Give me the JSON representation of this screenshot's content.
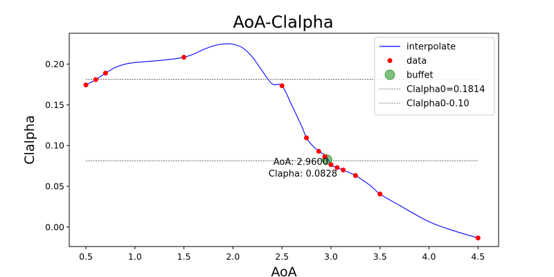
{
  "chart_data": {
    "type": "line",
    "title": "AoA-Clalpha",
    "xlabel": "AoA",
    "ylabel": "Clalpha",
    "xlim": [
      0.33,
      4.71
    ],
    "ylim": [
      -0.024,
      0.238
    ],
    "xticks": [
      0.5,
      1.0,
      1.5,
      2.0,
      2.5,
      3.0,
      3.5,
      4.0,
      4.5
    ],
    "xtick_labels": [
      "0.5",
      "1.0",
      "1.5",
      "2.0",
      "2.5",
      "3.0",
      "3.5",
      "4.0",
      "4.5"
    ],
    "yticks": [
      0.0,
      0.05,
      0.1,
      0.15,
      0.2
    ],
    "ytick_labels": [
      "0.00",
      "0.05",
      "0.10",
      "0.15",
      "0.20"
    ],
    "grid": false,
    "legend_position": "top-right",
    "series": [
      {
        "name": "interpolate",
        "kind": "line",
        "color": "#0000ff",
        "x": [
          0.5,
          0.6,
          0.7,
          0.8,
          0.9,
          1.0,
          1.2,
          1.4,
          1.5,
          1.6,
          1.7,
          1.8,
          1.9,
          2.0,
          2.1,
          2.2,
          2.3,
          2.4,
          2.5,
          2.6,
          2.7,
          2.75,
          2.8,
          2.875,
          2.95,
          3.0,
          3.0625,
          3.125,
          3.25,
          3.4,
          3.5,
          3.7,
          4.0,
          4.25,
          4.5
        ],
        "y": [
          0.1745,
          0.181,
          0.189,
          0.196,
          0.2,
          0.202,
          0.204,
          0.2065,
          0.2085,
          0.2125,
          0.218,
          0.2225,
          0.2248,
          0.2245,
          0.22,
          0.2085,
          0.1915,
          0.1757,
          0.1735,
          0.1495,
          0.124,
          0.1095,
          0.1015,
          0.093,
          0.087,
          0.0765,
          0.073,
          0.07,
          0.0632,
          0.051,
          0.0405,
          0.0265,
          0.0065,
          -0.0045,
          -0.0135
        ]
      },
      {
        "name": "data",
        "kind": "scatter",
        "color": "#ff0000",
        "x": [
          0.5,
          0.6,
          0.7,
          1.5,
          2.5,
          2.75,
          2.875,
          2.9375,
          3.0,
          3.0625,
          3.125,
          3.25,
          3.5,
          4.5
        ],
        "y": [
          0.1745,
          0.181,
          0.189,
          0.2085,
          0.1735,
          0.1095,
          0.093,
          0.0865,
          0.0765,
          0.073,
          0.07,
          0.0632,
          0.0405,
          -0.0135
        ]
      },
      {
        "name": "buffet",
        "kind": "scatter",
        "color": "#008000",
        "x": [
          2.96
        ],
        "y": [
          0.0828
        ]
      },
      {
        "name": "Clalpha0=0.1814",
        "kind": "hline",
        "color": "#000000",
        "y": 0.1814,
        "xmin": 0.5,
        "xmax": 4.5
      },
      {
        "name": "Clalpha0-0.10",
        "kind": "hline",
        "color": "#000000",
        "y": 0.0814,
        "xmin": 0.5,
        "xmax": 4.5
      }
    ],
    "annotation": {
      "line1": "AoA: 2.9600",
      "line2": "Clapha: 0.0828",
      "anchor_x": 2.96,
      "anchor_y": 0.0828
    }
  }
}
